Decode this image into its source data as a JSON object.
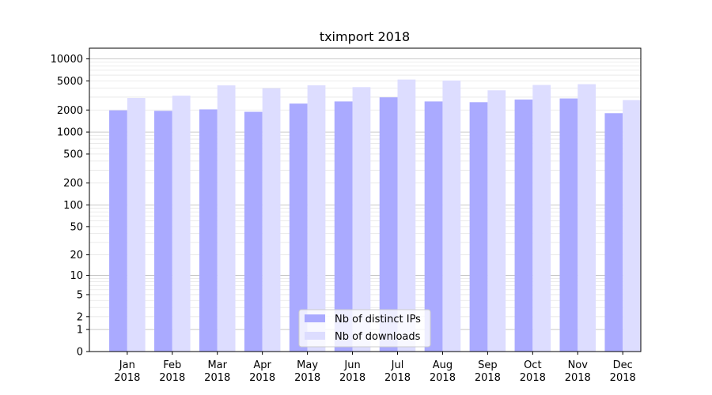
{
  "chart_data": {
    "type": "bar",
    "title": "tximport 2018",
    "categories": [
      "Jan",
      "Feb",
      "Mar",
      "Apr",
      "May",
      "Jun",
      "Jul",
      "Aug",
      "Sep",
      "Oct",
      "Nov",
      "Dec"
    ],
    "category_sublabel": "2018",
    "series": [
      {
        "name": "Nb of distinct IPs",
        "color": "#aaaaff",
        "values": [
          1980,
          1950,
          2040,
          1890,
          2450,
          2620,
          2980,
          2620,
          2560,
          2780,
          2880,
          1810
        ]
      },
      {
        "name": "Nb of downloads",
        "color": "#ddddff",
        "values": [
          2920,
          3140,
          4340,
          3960,
          4350,
          4110,
          5220,
          5060,
          3720,
          4400,
          4510,
          2730
        ]
      }
    ],
    "yscale": "symlog",
    "ylim": [
      0,
      14000
    ],
    "yticks": [
      0,
      1,
      2,
      5,
      10,
      20,
      50,
      100,
      200,
      500,
      1000,
      2000,
      5000,
      10000
    ],
    "grid": true,
    "legend_position": "lower center"
  }
}
